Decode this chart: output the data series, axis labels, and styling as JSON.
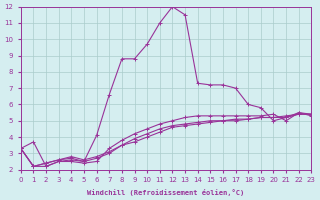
{
  "xlabel": "Windchill (Refroidissement éolien,°C)",
  "bg_color": "#d5eef0",
  "grid_color": "#aacccc",
  "line_color": "#993399",
  "xlim": [
    0,
    23
  ],
  "ylim": [
    2,
    12
  ],
  "xticks": [
    0,
    1,
    2,
    3,
    4,
    5,
    6,
    7,
    8,
    9,
    10,
    11,
    12,
    13,
    14,
    15,
    16,
    17,
    18,
    19,
    20,
    21,
    22,
    23
  ],
  "yticks": [
    2,
    3,
    4,
    5,
    6,
    7,
    8,
    9,
    10,
    11,
    12
  ],
  "series1_x": [
    0,
    1,
    2,
    3,
    4,
    5,
    6,
    7,
    8,
    9,
    10,
    11,
    12,
    13,
    14,
    15,
    16,
    17,
    18,
    19,
    20,
    21,
    22,
    23
  ],
  "series1_y": [
    3.3,
    3.7,
    2.2,
    2.5,
    2.6,
    2.5,
    4.1,
    6.6,
    8.8,
    8.8,
    9.7,
    11.0,
    12.0,
    11.5,
    7.3,
    7.2,
    7.2,
    7.0,
    6.0,
    5.8,
    5.0,
    5.2,
    5.5,
    5.4
  ],
  "series2_x": [
    0,
    1,
    2,
    3,
    4,
    5,
    6,
    7,
    8,
    9,
    10,
    11,
    12,
    13,
    14,
    15,
    16,
    17,
    18,
    19,
    20,
    21,
    22,
    23
  ],
  "series2_y": [
    3.3,
    2.2,
    2.2,
    2.5,
    2.5,
    2.4,
    2.5,
    3.3,
    3.8,
    4.2,
    4.5,
    4.8,
    5.0,
    5.2,
    5.3,
    5.3,
    5.3,
    5.3,
    5.3,
    5.3,
    5.4,
    5.0,
    5.5,
    5.3
  ],
  "series3_x": [
    0,
    1,
    2,
    3,
    4,
    5,
    6,
    7,
    8,
    9,
    10,
    11,
    12,
    13,
    14,
    15,
    16,
    17,
    18,
    19,
    20,
    21,
    22,
    23
  ],
  "series3_y": [
    3.3,
    2.2,
    2.4,
    2.6,
    2.7,
    2.5,
    2.7,
    3.0,
    3.5,
    3.7,
    4.0,
    4.3,
    4.6,
    4.7,
    4.8,
    4.9,
    5.0,
    5.1,
    5.1,
    5.2,
    5.2,
    5.2,
    5.4,
    5.4
  ],
  "series4_x": [
    0,
    1,
    2,
    3,
    4,
    5,
    6,
    7,
    8,
    9,
    10,
    11,
    12,
    13,
    14,
    15,
    16,
    17,
    18,
    19,
    20,
    21,
    22,
    23
  ],
  "series4_y": [
    3.3,
    2.2,
    2.4,
    2.6,
    2.8,
    2.6,
    2.8,
    3.1,
    3.5,
    3.9,
    4.2,
    4.5,
    4.7,
    4.8,
    4.9,
    5.0,
    5.0,
    5.0,
    5.1,
    5.2,
    5.2,
    5.3,
    5.4,
    5.4
  ]
}
